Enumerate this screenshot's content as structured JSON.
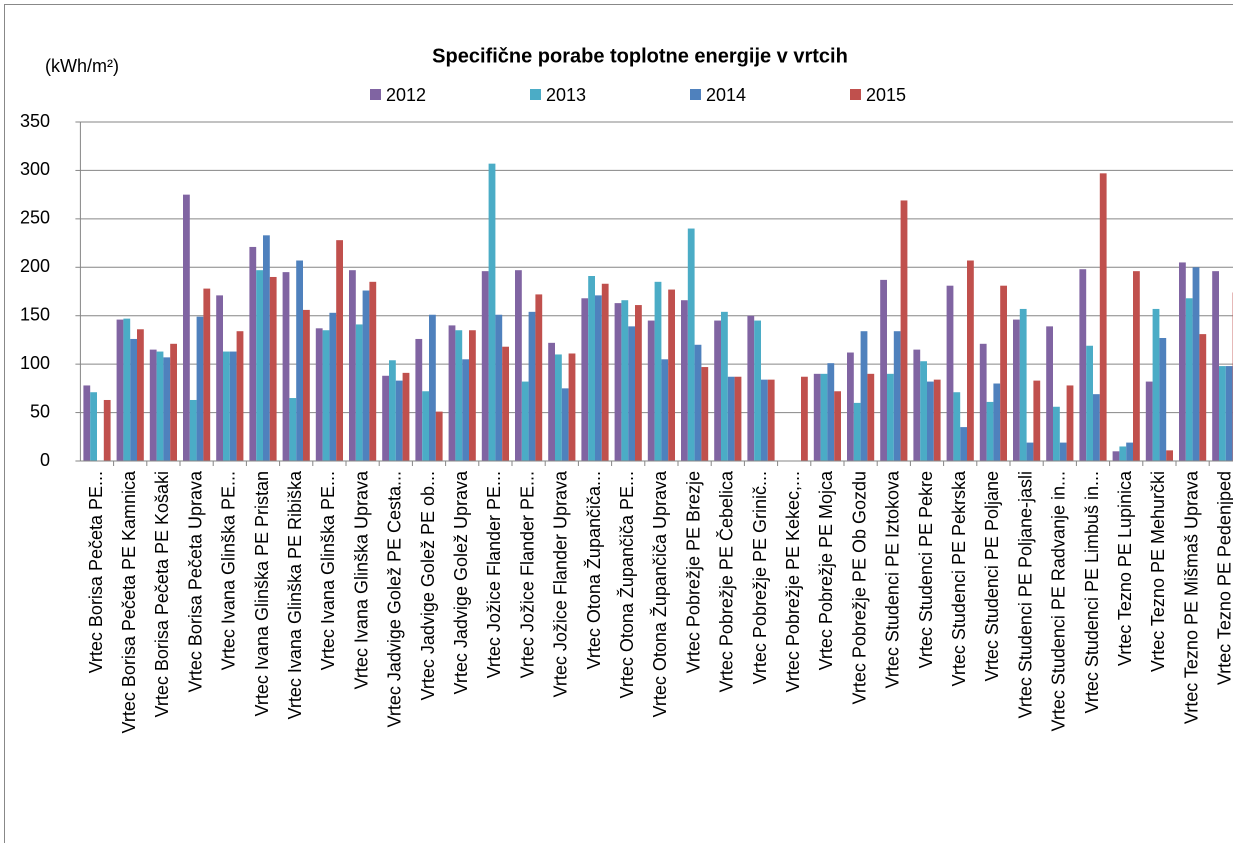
{
  "chart_data": {
    "type": "bar",
    "title": "Specifične porabe toplotne energije v vrtcih",
    "y_label": "(kWh/m²)",
    "categories": [
      "Vrtec Borisa Pečeta PE...",
      "Vrtec Borisa Pečeta PE Kamnica",
      "Vrtec Borisa Pečeta PE Košaki",
      "Vrtec Borisa Pečeta Uprava",
      "Vrtec Ivana Glinška PE...",
      "Vrtec Ivana Glinška PE Pristan",
      "Vrtec Ivana Glinška PE Ribiška",
      "Vrtec Ivana Glinška PE...",
      "Vrtec Ivana Glinška Uprava",
      "Vrtec Jadvige Golež PE Cesta...",
      "Vrtec Jadvige Golež PE ob...",
      "Vrtec Jadvige Golež Uprava",
      "Vrtec Jožice Flander PE...",
      "Vrtec Jožice Flander PE...",
      "Vrtec Jožice Flander Uprava",
      "Vrtec Otona Župančiča...",
      "Vrtec Otona Župančiča PE...",
      "Vrtec Otona Župančiča Uprava",
      "Vrtec Pobrežje PE Brezje",
      "Vrtec Pobrežje PE Čebelica",
      "Vrtec Pobrežje PE Grinič...",
      "Vrtec Pobrežje PE Kekec,...",
      "Vrtec Pobrežje PE Mojca",
      "Vrtec Pobrežje PE Ob Gozdu",
      "Vrtec Studenci PE Iztokova",
      "Vrtec Studenci PE Pekre",
      "Vrtec Studenci PE Pekrska",
      "Vrtec Studenci PE Poljane",
      "Vrtec Studenci PE Poljane-jasli",
      "Vrtec Studenci PE Radvanje in...",
      "Vrtec Studenci PE Limbuš in...",
      "Vrtec Tezno PE Lupinica",
      "Vrtec Tezno PE Mehurčki",
      "Vrtec Tezno PE Mišmaš Uprava",
      "Vrtec Tezno PE Pedenjped"
    ],
    "series": [
      {
        "name": "2012",
        "color": "#8064a2",
        "values": [
          78,
          146,
          115,
          275,
          171,
          221,
          195,
          137,
          197,
          88,
          126,
          140,
          196,
          197,
          122,
          168,
          163,
          145,
          166,
          145,
          150,
          null,
          90,
          112,
          187,
          115,
          181,
          121,
          146,
          139,
          198,
          10,
          82,
          205,
          196
        ]
      },
      {
        "name": "2013",
        "color": "#4bacc6",
        "values": [
          71,
          147,
          113,
          63,
          113,
          197,
          65,
          135,
          141,
          104,
          72,
          135,
          307,
          82,
          110,
          191,
          166,
          185,
          240,
          154,
          145,
          null,
          90,
          60,
          90,
          103,
          71,
          61,
          157,
          56,
          119,
          15,
          157,
          168,
          98
        ]
      },
      {
        "name": "2014",
        "color": "#4f81bd",
        "values": [
          null,
          126,
          107,
          149,
          113,
          233,
          207,
          153,
          176,
          83,
          151,
          105,
          151,
          154,
          75,
          171,
          139,
          105,
          120,
          87,
          84,
          null,
          101,
          134,
          134,
          82,
          35,
          80,
          19,
          19,
          69,
          19,
          127,
          200,
          98
        ]
      },
      {
        "name": "2015",
        "color": "#c0504d",
        "values": [
          63,
          136,
          121,
          178,
          134,
          190,
          156,
          228,
          185,
          91,
          51,
          135,
          118,
          172,
          111,
          183,
          161,
          177,
          97,
          87,
          84,
          87,
          72,
          90,
          269,
          84,
          207,
          181,
          83,
          78,
          297,
          196,
          11,
          131,
          174
        ]
      }
    ],
    "ylim": [
      0,
      350
    ],
    "yticks": [
      0,
      50,
      100,
      150,
      200,
      250,
      300,
      350
    ],
    "grid": true
  }
}
